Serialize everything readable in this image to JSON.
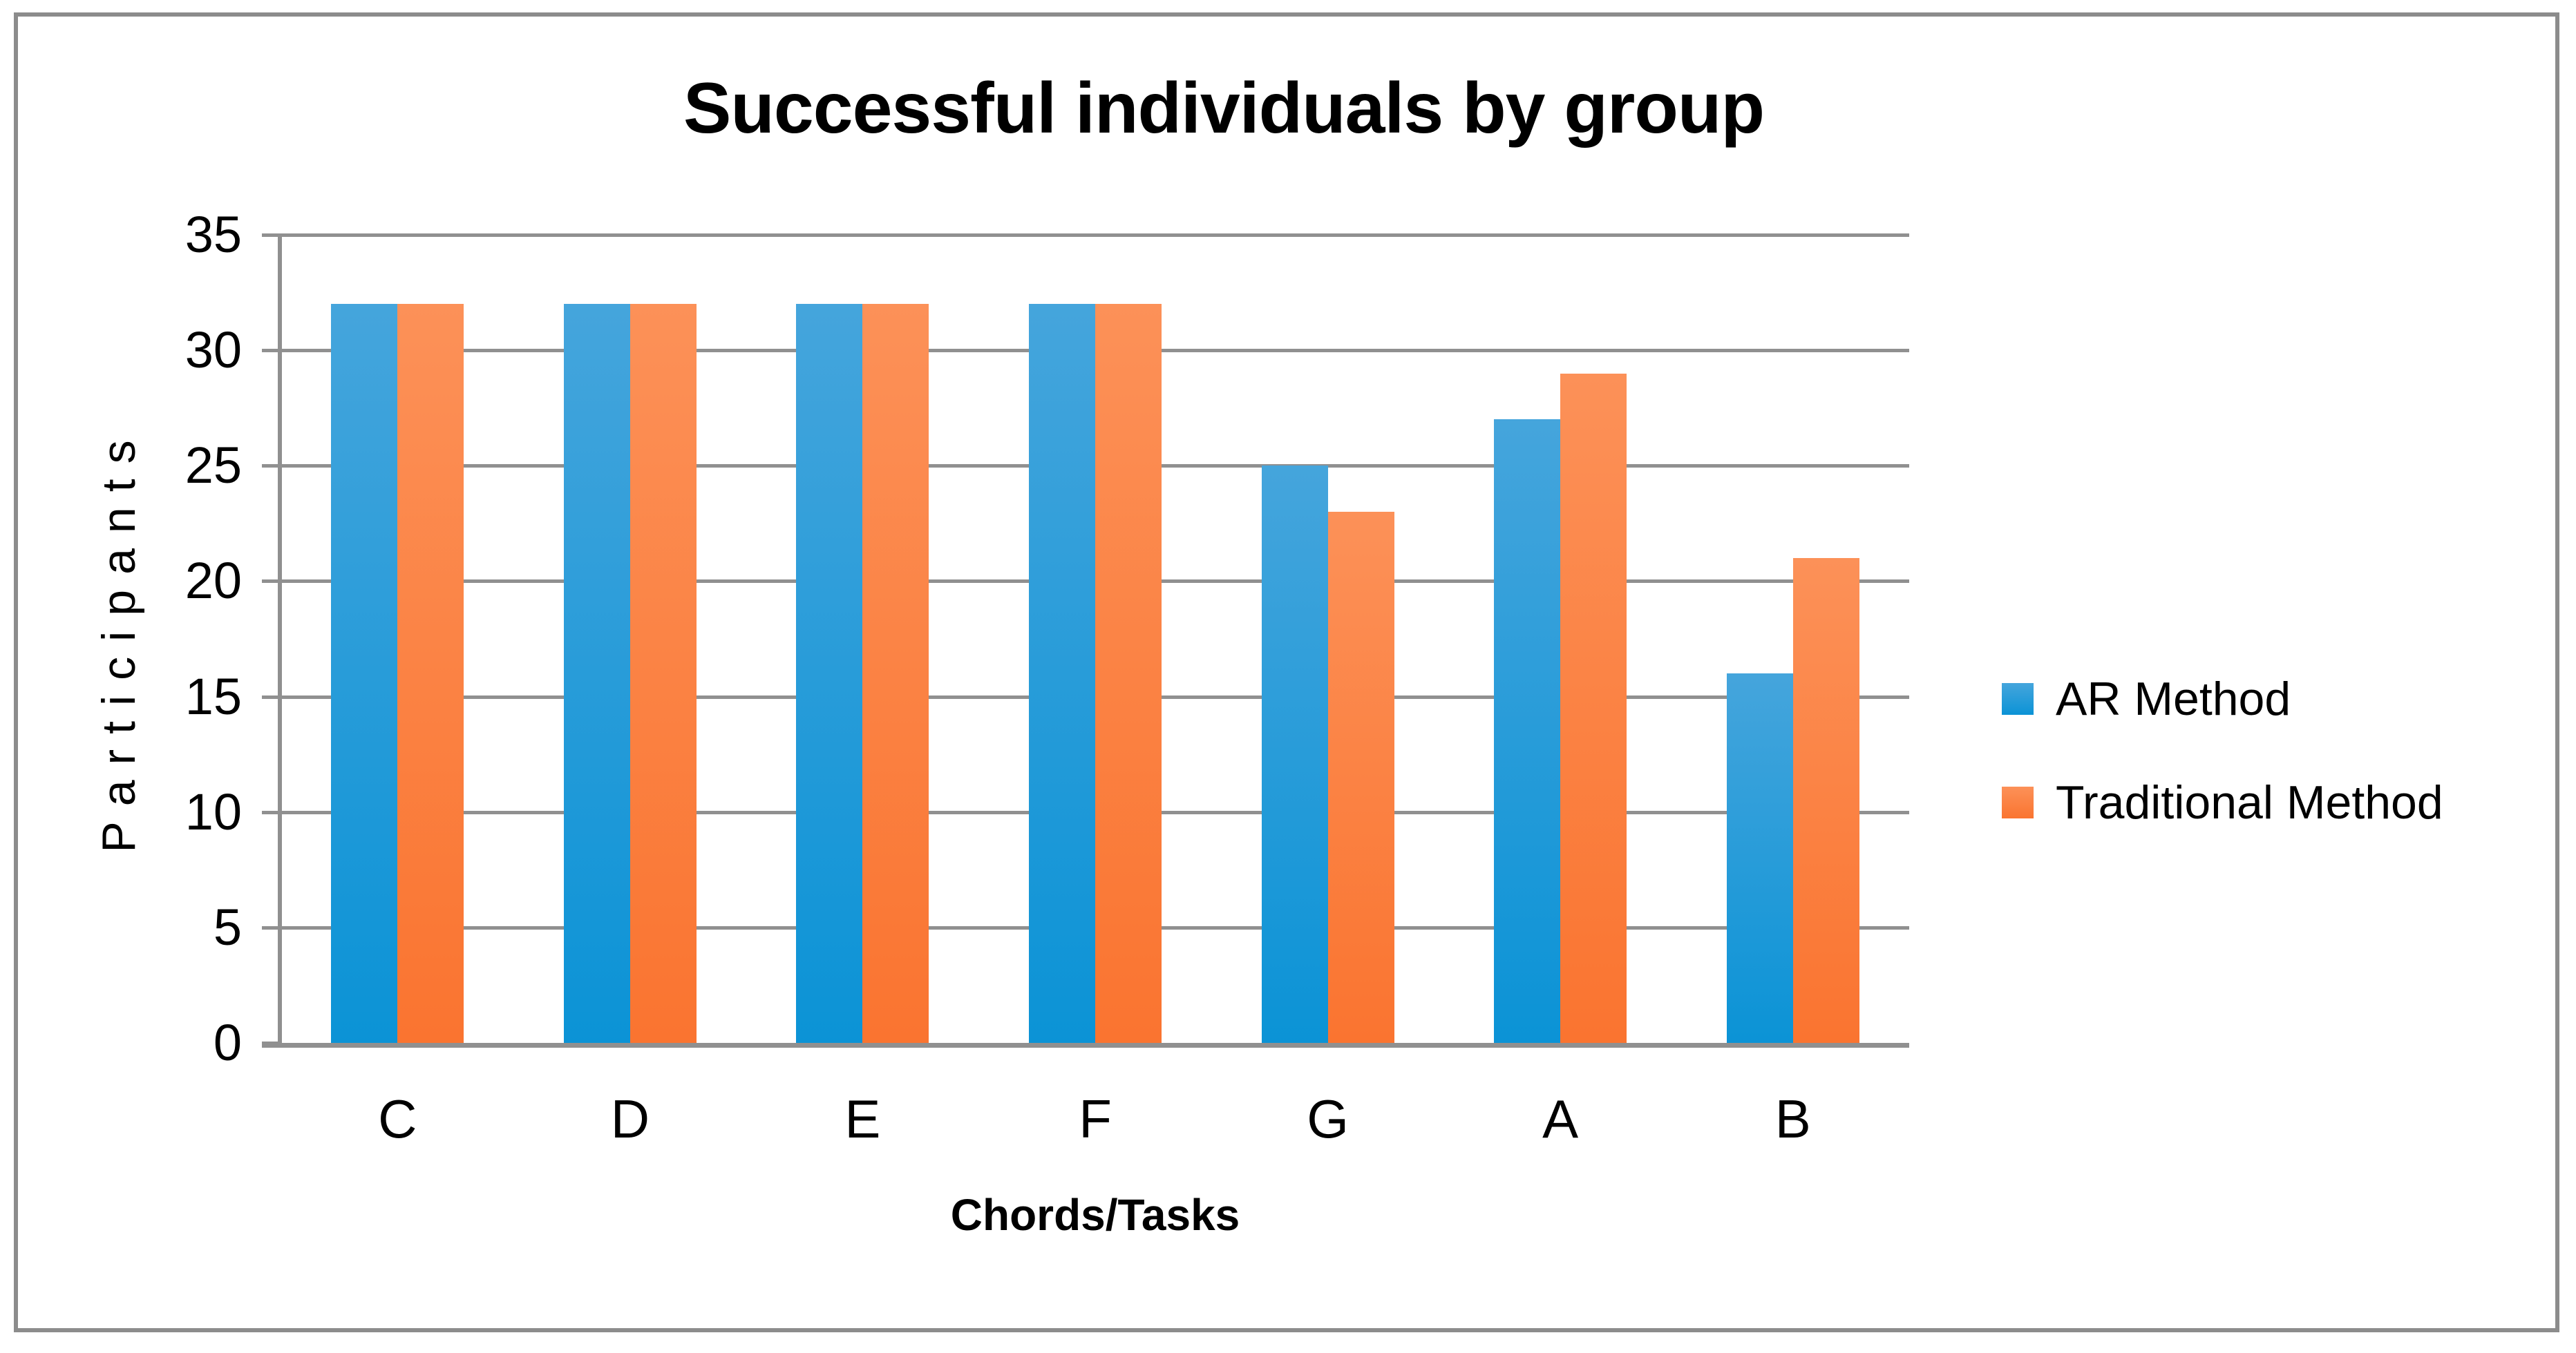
{
  "title": "Successful individuals by group",
  "chart_data": {
    "type": "bar",
    "title": "Successful individuals by group",
    "categories": [
      "C",
      "D",
      "E",
      "F",
      "G",
      "A",
      "B"
    ],
    "series": [
      {
        "name": "AR Method",
        "values": [
          32,
          32,
          32,
          32,
          25,
          27,
          16
        ],
        "color_top": "#45a5dc",
        "color_bottom": "#0b93d6"
      },
      {
        "name": "Traditional Method",
        "values": [
          32,
          32,
          32,
          32,
          23,
          29,
          21
        ],
        "color_top": "#fc9158",
        "color_bottom": "#fa7430"
      }
    ],
    "xlabel": "Chords/Tasks",
    "ylabel": "Participants",
    "ylim": [
      0,
      35
    ],
    "yticks": [
      35,
      30,
      25,
      20,
      15,
      10,
      5,
      0
    ],
    "grid": true,
    "legend_position": "right",
    "gridline_color": "#909090",
    "axis_color": "#909090",
    "frame_color": "#8c8c8c"
  }
}
